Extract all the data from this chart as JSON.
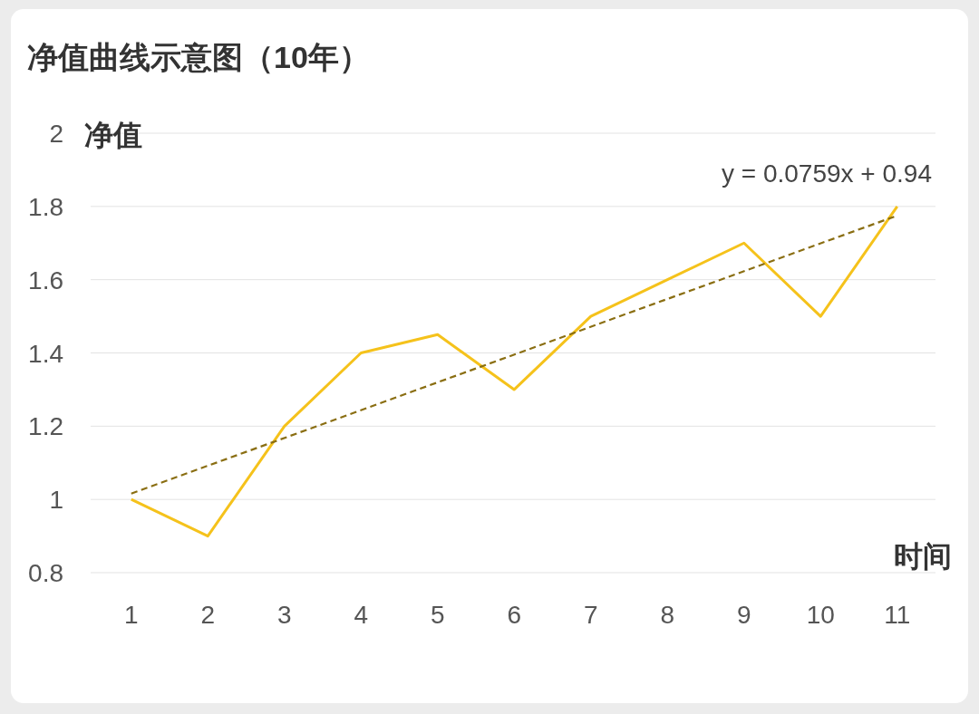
{
  "chart_data": {
    "type": "line",
    "title": "净值曲线示意图（10年）",
    "xlabel": "时间",
    "ylabel": "净值",
    "x": [
      1,
      2,
      3,
      4,
      5,
      6,
      7,
      8,
      9,
      10,
      11
    ],
    "series": [
      {
        "color": "#f5c21b",
        "values": [
          1,
          0.9,
          1.2,
          1.4,
          1.45,
          1.3,
          1.5,
          1.6,
          1.7,
          1.5,
          1.8
        ]
      },
      {
        "color": "#8a6e12",
        "line_style": "dashed",
        "x": [
          1,
          11
        ],
        "values": [
          1.016,
          1.775
        ]
      }
    ],
    "xlim": [
      0.47,
      11.5
    ],
    "xticks": [
      1,
      2,
      3,
      4,
      5,
      6,
      7,
      8,
      9,
      10,
      11
    ],
    "ylim": [
      0.8,
      2
    ],
    "yticks": [
      0.8,
      1,
      1.2,
      1.4,
      1.6,
      1.8,
      2
    ],
    "grid": "y",
    "annotations": [
      {
        "text": "y = 0.0759x + 0.94"
      }
    ]
  }
}
